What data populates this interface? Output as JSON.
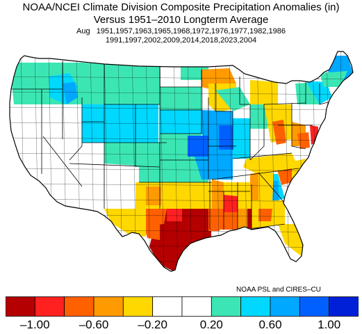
{
  "title": "NOAA/NCEI Climate Division Composite Precipitation Anomalies (in)",
  "subtitle": "Versus 1951–2010 Longterm Average",
  "month": "Aug",
  "years_line1": "1951,1957,1963,1965,1968,1972,1976,1977,1982,1986",
  "years_line2": "1991,1997,2002,2009,2014,2018,2023,2004",
  "credit": "NOAA PSL and CIRES–CU",
  "colorbar": {
    "colors": [
      "#b40000",
      "#ff2020",
      "#ff6000",
      "#ff9a00",
      "#ffd800",
      "#ffffff",
      "#ffffff",
      "#3ce6b4",
      "#00d8ff",
      "#00a8ff",
      "#0060ff",
      "#0020d8"
    ],
    "ticks": [
      "–1.00",
      "–0.60",
      "–0.20",
      "0.20",
      "0.60",
      "1.00"
    ],
    "tick_positions": [
      1,
      3,
      5,
      7,
      9,
      11
    ]
  },
  "palette": {
    "white": "#ffffff",
    "teal": "#3ce6b4",
    "cyan": "#00d8ff",
    "light_blue": "#00a8ff",
    "blue": "#0060ff",
    "dark_blue": "#0020d8",
    "yellow": "#ffd800",
    "light_orange": "#ff9a00",
    "orange": "#ff6000",
    "red": "#ff2020",
    "dark_red": "#b40000"
  }
}
